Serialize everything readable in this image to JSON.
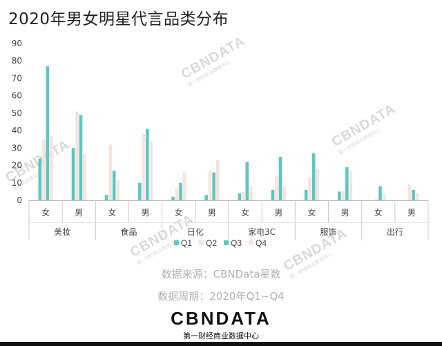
{
  "page_title": "2020年男女明星代言品类分布",
  "chart_data": {
    "type": "bar",
    "title": "2020年男女明星代言品类分布",
    "ylim": [
      0,
      90
    ],
    "yticks": [
      0,
      10,
      20,
      30,
      40,
      50,
      60,
      70,
      80,
      90
    ],
    "groups": [
      {
        "name": "美妆",
        "subcategories": [
          "女",
          "男"
        ]
      },
      {
        "name": "食品",
        "subcategories": [
          "女",
          "男"
        ]
      },
      {
        "name": "日化",
        "subcategories": [
          "女",
          "男"
        ]
      },
      {
        "name": "家电3C",
        "subcategories": [
          "女",
          "男"
        ]
      },
      {
        "name": "服饰",
        "subcategories": [
          "女",
          "男"
        ]
      },
      {
        "name": "出行",
        "subcategories": [
          "女",
          "男"
        ]
      }
    ],
    "categories": [
      "美妆-女",
      "美妆-男",
      "食品-女",
      "食品-男",
      "日化-女",
      "日化-男",
      "家电3C-女",
      "家电3C-男",
      "服饰-女",
      "服饰-男",
      "出行-女",
      "出行-男"
    ],
    "series": [
      {
        "name": "Q1",
        "values": [
          24,
          30,
          3,
          10,
          2,
          3,
          4,
          6,
          6,
          5,
          0,
          0
        ]
      },
      {
        "name": "Q2",
        "values": [
          35,
          51,
          32,
          38,
          7,
          17,
          5,
          14,
          13,
          5,
          1,
          9
        ]
      },
      {
        "name": "Q3",
        "values": [
          77,
          49,
          17,
          41,
          10,
          16,
          22,
          25,
          27,
          19,
          8,
          6
        ]
      },
      {
        "name": "Q4",
        "values": [
          37,
          27,
          12,
          34,
          16,
          23,
          8,
          8,
          18,
          17,
          4,
          4
        ]
      }
    ],
    "colors": {
      "Q1": "#5cc7c2",
      "Q2": "#f7e3dd",
      "Q3": "#5cc7c2",
      "Q4": "#f7e3dd"
    },
    "legend_position": "bottom",
    "grid": false
  },
  "watermark": {
    "brand": "CBNDATA",
    "tagline": "第一财经商业数据中心"
  },
  "footer": {
    "source": "数据来源：CBNData星数",
    "period": "数据周期：2020年Q1~Q4",
    "logo": "CBNDATA",
    "logo_sub": "第一财经商业数据中心"
  }
}
